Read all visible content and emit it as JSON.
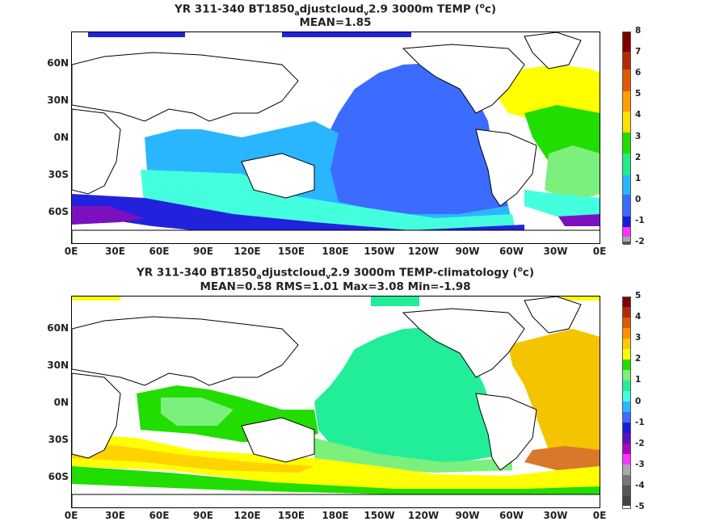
{
  "panels": [
    {
      "title_a": "YR 311-340 BT1850",
      "title_sub": "a",
      "title_b": "djustcloud",
      "title_sub2": "v",
      "title_c": "2.9 3000m TEMP (",
      "title_sup": "o",
      "title_d": "c)",
      "stats": "MEAN=1.85",
      "colorbar_ticks": [
        "8",
        "7",
        "6",
        "5",
        "4",
        "3",
        "2",
        "1",
        "0",
        "-1",
        "-2"
      ],
      "colors": [
        "#7a0000",
        "#b22a00",
        "#e05a00",
        "#ff9600",
        "#ffd200",
        "#ffff00",
        "#22dd00",
        "#22ee88",
        "#44ffdd",
        "#2ab6ff",
        "#3b6bff",
        "#1a1adc",
        "#6010c0",
        "#ff33ff",
        "#aaaaaa",
        "#555555"
      ]
    },
    {
      "title_a": "YR 311-340 BT1850",
      "title_sub": "a",
      "title_b": "djustcloud",
      "title_sub2": "v",
      "title_c": "2.9 3000m TEMP-climatology (",
      "title_sup": "o",
      "title_d": "c)",
      "stats": "MEAN=0.58   RMS=1.01   Max=3.08   Min=-1.98",
      "colorbar_ticks": [
        "5",
        "4",
        "3",
        "2",
        "1",
        "0",
        "-1",
        "-2",
        "-3",
        "-4",
        "-5"
      ]
    }
  ],
  "lat_labels": [
    "60N",
    "30N",
    "0N",
    "30S",
    "60S"
  ],
  "lon_labels": [
    "0E",
    "30E",
    "60E",
    "90E",
    "120E",
    "150E",
    "180E",
    "150W",
    "120W",
    "90W",
    "60W",
    "30W",
    "0E"
  ],
  "fill_colors": {
    "white": "#ffffff",
    "blue_dark": "#2222dd",
    "blue_mid": "#3b6bff",
    "blue_light": "#2ab6ff",
    "cyan": "#44ffdd",
    "green_light": "#7cf07c",
    "green": "#22dd00",
    "yellow": "#ffff00",
    "gold": "#ffd200",
    "orange": "#ffaa22",
    "purple": "#7a10c0",
    "aqua_green": "#22ee99",
    "yellow_orange": "#f5c400",
    "brown_orange": "#d9782a"
  }
}
